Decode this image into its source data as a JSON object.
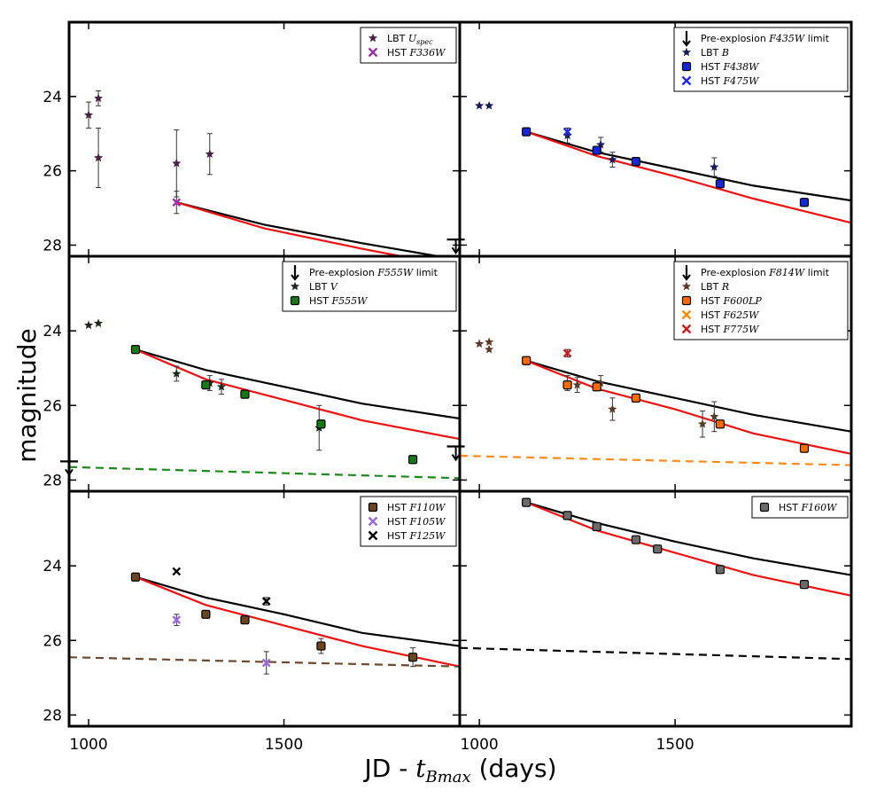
{
  "figure": {
    "ylabel": "magnitude",
    "xlabel": "JD - t_Bmax (days)",
    "xlabel_prefix": "JD - ",
    "xlabel_var": "t",
    "xlabel_sub": "Bmax",
    "xlabel_suffix": " (days)",
    "xtick_labels": [
      "1000",
      "1500"
    ],
    "ytick_labels": [
      "24",
      "26",
      "28"
    ]
  },
  "chart_data": [
    {
      "panel": "top-left",
      "type": "scatter",
      "xlim": [
        950,
        1950
      ],
      "ylim": [
        28.3,
        22.0
      ],
      "xticks": [
        1000,
        1500
      ],
      "yticks": [
        24,
        26,
        28
      ],
      "legend_placement": "top-right",
      "series": [
        {
          "name": "LBT U_spec",
          "legend": [
            "LBT ",
            "U",
            "spec",
            ""
          ],
          "marker": "star",
          "color": "#4a2040",
          "points": [
            [
              1000,
              24.5,
              0.35
            ],
            [
              1025,
              24.05,
              0.2
            ],
            [
              1025,
              25.65,
              0.8
            ],
            [
              1225,
              25.8,
              0.9
            ],
            [
              1310,
              25.55,
              0.55
            ]
          ]
        },
        {
          "name": "HST F336W",
          "legend": [
            "HST ",
            "F336W",
            "",
            ""
          ],
          "marker": "x",
          "color": "#9b30b0",
          "points": [
            [
              1225,
              26.85,
              0.3
            ]
          ]
        }
      ],
      "model_lines": [
        {
          "color": "#000000",
          "dashed": false,
          "points": [
            [
              1225,
              26.85
            ],
            [
              1450,
              27.45
            ],
            [
              1700,
              27.95
            ],
            [
              1950,
              28.4
            ]
          ]
        },
        {
          "color": "#ee1111",
          "dashed": false,
          "points": [
            [
              1225,
              26.85
            ],
            [
              1450,
              27.55
            ],
            [
              1700,
              28.1
            ],
            [
              1950,
              28.6
            ]
          ]
        }
      ],
      "limits": []
    },
    {
      "panel": "top-right",
      "type": "scatter",
      "xlim": [
        950,
        1950
      ],
      "ylim": [
        28.3,
        22.0
      ],
      "xticks": [
        1000,
        1500
      ],
      "yticks": [
        24,
        26,
        28
      ],
      "legend_placement": "top-right",
      "series": [
        {
          "name": "Pre-explosion F435W limit",
          "legend": [
            "Pre-explosion ",
            "F435W",
            "",
            " limit"
          ],
          "marker": "arrow",
          "color": "#000000",
          "points": []
        },
        {
          "name": "LBT B",
          "legend": [
            "LBT ",
            "B",
            "",
            ""
          ],
          "marker": "star",
          "color": "#1a1a5a",
          "points": [
            [
              1000,
              24.25,
              0.05
            ],
            [
              1025,
              24.25,
              0.05
            ],
            [
              1225,
              25.05,
              0.2
            ],
            [
              1310,
              25.3,
              0.2
            ],
            [
              1340,
              25.7,
              0.2
            ],
            [
              1600,
              25.9,
              0.25
            ]
          ]
        },
        {
          "name": "HST F438W",
          "legend": [
            "HST ",
            "F438W",
            "",
            ""
          ],
          "marker": "square",
          "color": "#1428d8",
          "points": [
            [
              1120,
              24.95,
              0.05
            ],
            [
              1300,
              25.45,
              0.05
            ],
            [
              1400,
              25.75,
              0.05
            ],
            [
              1615,
              26.35,
              0.05
            ],
            [
              1830,
              26.85,
              0.05
            ]
          ]
        },
        {
          "name": "HST F475W",
          "legend": [
            "HST ",
            "F475W",
            "",
            ""
          ],
          "marker": "x",
          "color": "#1d2af0",
          "points": [
            [
              1225,
              24.95,
              0.1
            ]
          ]
        }
      ],
      "model_lines": [
        {
          "color": "#000000",
          "dashed": false,
          "points": [
            [
              1120,
              24.95
            ],
            [
              1300,
              25.5
            ],
            [
              1500,
              25.95
            ],
            [
              1700,
              26.4
            ],
            [
              1950,
              26.8
            ]
          ]
        },
        {
          "color": "#ee1111",
          "dashed": false,
          "points": [
            [
              1120,
              24.95
            ],
            [
              1300,
              25.6
            ],
            [
              1500,
              26.15
            ],
            [
              1700,
              26.75
            ],
            [
              1950,
              27.4
            ]
          ]
        }
      ],
      "limits": [
        {
          "x": 940,
          "y": 27.85,
          "color": "#000000"
        }
      ]
    },
    {
      "panel": "middle-left",
      "type": "scatter",
      "xlim": [
        950,
        1950
      ],
      "ylim": [
        28.3,
        22.0
      ],
      "xticks": [
        1000,
        1500
      ],
      "yticks": [
        24,
        26,
        28
      ],
      "legend_placement": "top-right",
      "series": [
        {
          "name": "Pre-explosion F555W limit",
          "legend": [
            "Pre-explosion ",
            "F555W",
            "",
            " limit"
          ],
          "marker": "arrow",
          "color": "#000000",
          "points": []
        },
        {
          "name": "LBT V",
          "legend": [
            "LBT ",
            "V",
            "",
            ""
          ],
          "marker": "star",
          "color": "#1a2a1a",
          "points": [
            [
              1000,
              23.85,
              0.05
            ],
            [
              1025,
              23.8,
              0.05
            ],
            [
              1225,
              25.15,
              0.2
            ],
            [
              1310,
              25.4,
              0.2
            ],
            [
              1340,
              25.5,
              0.2
            ],
            [
              1590,
              26.6,
              0.6
            ]
          ]
        },
        {
          "name": "HST F555W",
          "legend": [
            "HST ",
            "F555W",
            "",
            ""
          ],
          "marker": "square",
          "color": "#157a15",
          "points": [
            [
              1120,
              24.5,
              0.05
            ],
            [
              1300,
              25.45,
              0.05
            ],
            [
              1400,
              25.7,
              0.05
            ],
            [
              1595,
              26.5,
              0.05
            ],
            [
              1830,
              27.45,
              0.05
            ]
          ]
        }
      ],
      "model_lines": [
        {
          "color": "#000000",
          "dashed": false,
          "points": [
            [
              1120,
              24.5
            ],
            [
              1300,
              25.05
            ],
            [
              1500,
              25.5
            ],
            [
              1700,
              25.95
            ],
            [
              1950,
              26.35
            ]
          ]
        },
        {
          "color": "#ee1111",
          "dashed": false,
          "points": [
            [
              1120,
              24.5
            ],
            [
              1300,
              25.3
            ],
            [
              1500,
              25.85
            ],
            [
              1700,
              26.4
            ],
            [
              1950,
              26.9
            ]
          ]
        },
        {
          "color": "#1a8a1a",
          "dashed": true,
          "points": [
            [
              950,
              27.65
            ],
            [
              1950,
              27.95
            ]
          ]
        }
      ],
      "limits": [
        {
          "x": 950,
          "y": 27.5,
          "color": "#000000"
        }
      ]
    },
    {
      "panel": "middle-right",
      "type": "scatter",
      "xlim": [
        950,
        1950
      ],
      "ylim": [
        28.3,
        22.0
      ],
      "xticks": [
        1000,
        1500
      ],
      "yticks": [
        24,
        26,
        28
      ],
      "legend_placement": "top-right",
      "series": [
        {
          "name": "Pre-explosion F814W limit",
          "legend": [
            "Pre-explosion ",
            "F814W",
            "",
            " limit"
          ],
          "marker": "arrow",
          "color": "#000000",
          "points": []
        },
        {
          "name": "LBT R",
          "legend": [
            "LBT ",
            "R",
            "",
            ""
          ],
          "marker": "star",
          "color": "#5a3a28",
          "points": [
            [
              1000,
              24.35,
              0.05
            ],
            [
              1025,
              24.3,
              0.05
            ],
            [
              1025,
              24.5,
              0.05
            ],
            [
              1225,
              25.4,
              0.2
            ],
            [
              1250,
              25.45,
              0.2
            ],
            [
              1310,
              25.4,
              0.2
            ],
            [
              1340,
              26.1,
              0.3
            ],
            [
              1570,
              26.5,
              0.35
            ],
            [
              1600,
              26.3,
              0.4
            ]
          ]
        },
        {
          "name": "HST F600LP",
          "legend": [
            "HST ",
            "F600LP",
            "",
            ""
          ],
          "marker": "square",
          "color": "#ff6a00",
          "points": [
            [
              1120,
              24.8,
              0.05
            ],
            [
              1225,
              25.45,
              0.05
            ],
            [
              1300,
              25.5,
              0.05
            ],
            [
              1400,
              25.8,
              0.05
            ],
            [
              1615,
              26.5,
              0.05
            ],
            [
              1830,
              27.15,
              0.05
            ]
          ]
        },
        {
          "name": "HST F625W",
          "legend": [
            "HST ",
            "F625W",
            "",
            ""
          ],
          "marker": "x",
          "color": "#ff8c00",
          "points": []
        },
        {
          "name": "HST F775W",
          "legend": [
            "HST ",
            "F775W",
            "",
            ""
          ],
          "marker": "x",
          "color": "#d41a1a",
          "points": [
            [
              1225,
              24.6,
              0.1
            ]
          ]
        }
      ],
      "model_lines": [
        {
          "color": "#000000",
          "dashed": false,
          "points": [
            [
              1120,
              24.8
            ],
            [
              1300,
              25.35
            ],
            [
              1500,
              25.8
            ],
            [
              1700,
              26.25
            ],
            [
              1950,
              26.7
            ]
          ]
        },
        {
          "color": "#ee1111",
          "dashed": false,
          "points": [
            [
              1120,
              24.8
            ],
            [
              1300,
              25.55
            ],
            [
              1500,
              26.1
            ],
            [
              1700,
              26.75
            ],
            [
              1950,
              27.3
            ]
          ]
        },
        {
          "color": "#ff8c1a",
          "dashed": true,
          "points": [
            [
              950,
              27.35
            ],
            [
              1950,
              27.6
            ]
          ]
        }
      ],
      "limits": [
        {
          "x": 940,
          "y": 27.1,
          "color": "#000000"
        }
      ]
    },
    {
      "panel": "bottom-left",
      "type": "scatter",
      "xlim": [
        950,
        1950
      ],
      "ylim": [
        28.3,
        22.0
      ],
      "xticks": [
        1000,
        1500
      ],
      "yticks": [
        24,
        26,
        28
      ],
      "legend_placement": "top-right",
      "series": [
        {
          "name": "HST F110W",
          "legend": [
            "HST ",
            "F110W",
            "",
            ""
          ],
          "marker": "square",
          "color": "#6b4420",
          "points": [
            [
              1120,
              24.3,
              0.05
            ],
            [
              1300,
              25.3,
              0.05
            ],
            [
              1400,
              25.45,
              0.05
            ],
            [
              1595,
              26.15,
              0.2
            ],
            [
              1830,
              26.45,
              0.25
            ]
          ]
        },
        {
          "name": "HST F105W",
          "legend": [
            "HST ",
            "F105W",
            "",
            ""
          ],
          "marker": "x",
          "color": "#a066e0",
          "points": [
            [
              1225,
              25.45,
              0.15
            ],
            [
              1455,
              26.6,
              0.3
            ]
          ]
        },
        {
          "name": "HST F125W",
          "legend": [
            "HST ",
            "F125W",
            "",
            ""
          ],
          "marker": "x",
          "color": "#000000",
          "points": [
            [
              1225,
              24.15,
              0.05
            ],
            [
              1455,
              24.95,
              0.1
            ]
          ]
        }
      ],
      "model_lines": [
        {
          "color": "#000000",
          "dashed": false,
          "points": [
            [
              1120,
              24.3
            ],
            [
              1300,
              24.85
            ],
            [
              1500,
              25.3
            ],
            [
              1700,
              25.8
            ],
            [
              1950,
              26.15
            ]
          ]
        },
        {
          "color": "#ee1111",
          "dashed": false,
          "points": [
            [
              1120,
              24.3
            ],
            [
              1300,
              25.05
            ],
            [
              1500,
              25.6
            ],
            [
              1700,
              26.15
            ],
            [
              1950,
              26.7
            ]
          ]
        },
        {
          "color": "#6b4a2e",
          "dashed": true,
          "points": [
            [
              950,
              26.45
            ],
            [
              1950,
              26.7
            ]
          ]
        }
      ],
      "limits": []
    },
    {
      "panel": "bottom-right",
      "type": "scatter",
      "xlim": [
        950,
        1950
      ],
      "ylim": [
        28.3,
        22.0
      ],
      "xticks": [
        1000,
        1500
      ],
      "yticks": [
        24,
        26,
        28
      ],
      "legend_placement": "top-right",
      "series": [
        {
          "name": "HST F160W",
          "legend": [
            "HST ",
            "F160W",
            "",
            ""
          ],
          "marker": "square",
          "color": "#6a6a6a",
          "points": [
            [
              1120,
              22.3,
              0.05
            ],
            [
              1225,
              22.65,
              0.05
            ],
            [
              1300,
              22.95,
              0.05
            ],
            [
              1400,
              23.3,
              0.05
            ],
            [
              1455,
              23.55,
              0.05
            ],
            [
              1615,
              24.1,
              0.05
            ],
            [
              1830,
              24.5,
              0.05
            ]
          ]
        }
      ],
      "model_lines": [
        {
          "color": "#000000",
          "dashed": false,
          "points": [
            [
              1120,
              22.3
            ],
            [
              1300,
              22.85
            ],
            [
              1500,
              23.35
            ],
            [
              1700,
              23.8
            ],
            [
              1950,
              24.25
            ]
          ]
        },
        {
          "color": "#ee1111",
          "dashed": false,
          "points": [
            [
              1120,
              22.3
            ],
            [
              1300,
              23.05
            ],
            [
              1500,
              23.65
            ],
            [
              1700,
              24.25
            ],
            [
              1950,
              24.8
            ]
          ]
        },
        {
          "color": "#000000",
          "dashed": true,
          "points": [
            [
              950,
              26.2
            ],
            [
              1950,
              26.5
            ]
          ]
        }
      ],
      "limits": []
    }
  ]
}
